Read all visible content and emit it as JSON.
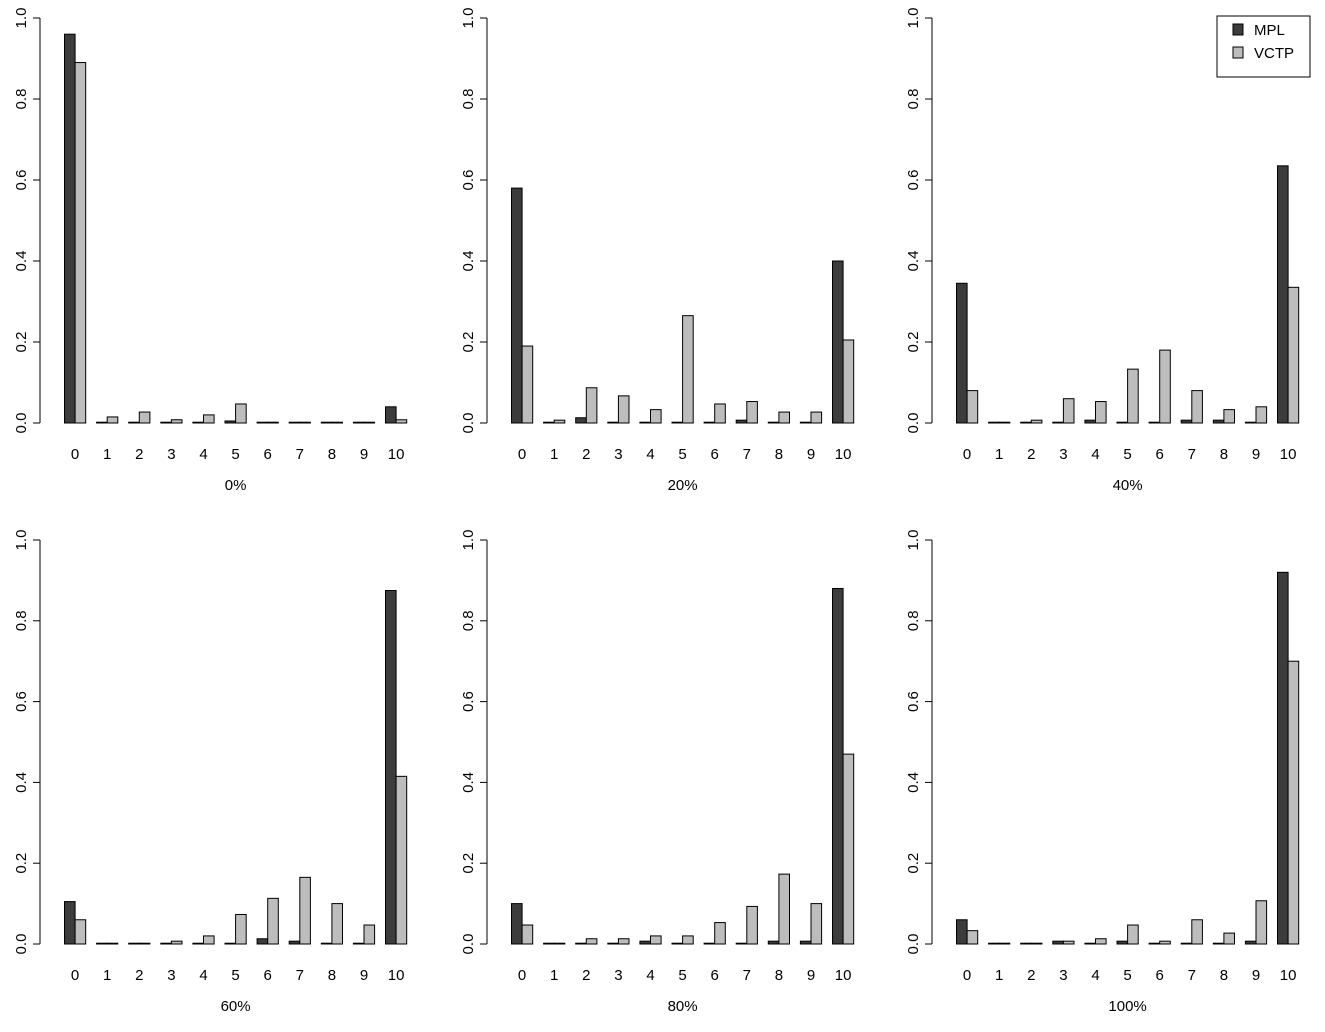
{
  "colors": {
    "MPL": "#3c3c3c",
    "VCTP": "#bdbdbd",
    "axis": "#000000"
  },
  "legend": {
    "placement": "top-right",
    "panel": 2,
    "entries": [
      "MPL",
      "VCTP"
    ]
  },
  "chart_data": [
    {
      "type": "bar",
      "xlabel": "0%",
      "ylim": [
        0,
        1
      ],
      "yticks": [
        "0.0",
        "0.2",
        "0.4",
        "0.6",
        "0.8",
        "1.0"
      ],
      "categories": [
        "0",
        "1",
        "2",
        "3",
        "4",
        "5",
        "6",
        "7",
        "8",
        "9",
        "10"
      ],
      "series": [
        {
          "name": "MPL",
          "values": [
            0.96,
            0.0,
            0.0,
            0.0,
            0.0,
            0.005,
            0.0,
            0.0,
            0.0,
            0.0,
            0.04
          ]
        },
        {
          "name": "VCTP",
          "values": [
            0.89,
            0.015,
            0.027,
            0.008,
            0.02,
            0.047,
            0.0,
            0.0,
            0.0,
            0.0,
            0.008
          ]
        }
      ]
    },
    {
      "type": "bar",
      "xlabel": "20%",
      "ylim": [
        0,
        1
      ],
      "yticks": [
        "0.0",
        "0.2",
        "0.4",
        "0.6",
        "0.8",
        "1.0"
      ],
      "categories": [
        "0",
        "1",
        "2",
        "3",
        "4",
        "5",
        "6",
        "7",
        "8",
        "9",
        "10"
      ],
      "series": [
        {
          "name": "MPL",
          "values": [
            0.58,
            0.0,
            0.013,
            0.0,
            0.0,
            0.0,
            0.0,
            0.007,
            0.0,
            0.0,
            0.4
          ]
        },
        {
          "name": "VCTP",
          "values": [
            0.19,
            0.007,
            0.087,
            0.067,
            0.033,
            0.265,
            0.047,
            0.053,
            0.027,
            0.027,
            0.205
          ]
        }
      ]
    },
    {
      "type": "bar",
      "xlabel": "40%",
      "ylim": [
        0,
        1
      ],
      "yticks": [
        "0.0",
        "0.2",
        "0.4",
        "0.6",
        "0.8",
        "1.0"
      ],
      "categories": [
        "0",
        "1",
        "2",
        "3",
        "4",
        "5",
        "6",
        "7",
        "8",
        "9",
        "10"
      ],
      "series": [
        {
          "name": "MPL",
          "values": [
            0.345,
            0.0,
            0.0,
            0.0,
            0.007,
            0.0,
            0.0,
            0.007,
            0.007,
            0.0,
            0.635
          ]
        },
        {
          "name": "VCTP",
          "values": [
            0.08,
            0.0,
            0.007,
            0.06,
            0.053,
            0.133,
            0.18,
            0.08,
            0.033,
            0.04,
            0.335
          ]
        }
      ]
    },
    {
      "type": "bar",
      "xlabel": "60%",
      "ylim": [
        0,
        1
      ],
      "yticks": [
        "0.0",
        "0.2",
        "0.4",
        "0.6",
        "0.8",
        "1.0"
      ],
      "categories": [
        "0",
        "1",
        "2",
        "3",
        "4",
        "5",
        "6",
        "7",
        "8",
        "9",
        "10"
      ],
      "series": [
        {
          "name": "MPL",
          "values": [
            0.105,
            0.0,
            0.0,
            0.0,
            0.0,
            0.0,
            0.013,
            0.007,
            0.0,
            0.0,
            0.875
          ]
        },
        {
          "name": "VCTP",
          "values": [
            0.06,
            0.0,
            0.0,
            0.007,
            0.02,
            0.073,
            0.113,
            0.165,
            0.1,
            0.047,
            0.415
          ]
        }
      ]
    },
    {
      "type": "bar",
      "xlabel": "80%",
      "ylim": [
        0,
        1
      ],
      "yticks": [
        "0.0",
        "0.2",
        "0.4",
        "0.6",
        "0.8",
        "1.0"
      ],
      "categories": [
        "0",
        "1",
        "2",
        "3",
        "4",
        "5",
        "6",
        "7",
        "8",
        "9",
        "10"
      ],
      "series": [
        {
          "name": "MPL",
          "values": [
            0.1,
            0.0,
            0.0,
            0.0,
            0.007,
            0.0,
            0.0,
            0.0,
            0.007,
            0.007,
            0.88
          ]
        },
        {
          "name": "VCTP",
          "values": [
            0.047,
            0.0,
            0.013,
            0.013,
            0.02,
            0.02,
            0.053,
            0.093,
            0.173,
            0.1,
            0.47
          ]
        }
      ]
    },
    {
      "type": "bar",
      "xlabel": "100%",
      "ylim": [
        0,
        1
      ],
      "yticks": [
        "0.0",
        "0.2",
        "0.4",
        "0.6",
        "0.8",
        "1.0"
      ],
      "categories": [
        "0",
        "1",
        "2",
        "3",
        "4",
        "5",
        "6",
        "7",
        "8",
        "9",
        "10"
      ],
      "series": [
        {
          "name": "MPL",
          "values": [
            0.06,
            0.0,
            0.0,
            0.007,
            0.0,
            0.007,
            0.0,
            0.0,
            0.0,
            0.007,
            0.92
          ]
        },
        {
          "name": "VCTP",
          "values": [
            0.033,
            0.0,
            0.0,
            0.007,
            0.013,
            0.047,
            0.007,
            0.06,
            0.027,
            0.107,
            0.7
          ]
        }
      ]
    }
  ]
}
